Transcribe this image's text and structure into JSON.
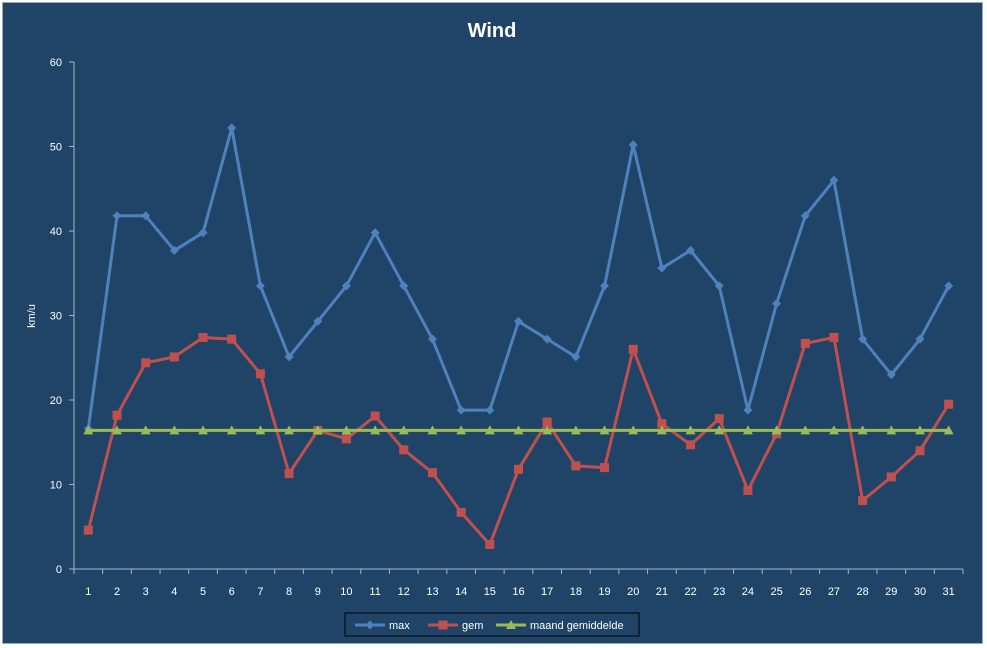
{
  "chart_data": {
    "type": "line",
    "title": "Wind",
    "xlabel": "",
    "ylabel": "km/u",
    "ylim": [
      0,
      60
    ],
    "yticks": [
      0,
      10,
      20,
      30,
      40,
      50,
      60
    ],
    "categories": [
      "1",
      "2",
      "3",
      "4",
      "5",
      "6",
      "7",
      "8",
      "9",
      "10",
      "11",
      "12",
      "13",
      "14",
      "15",
      "16",
      "17",
      "18",
      "19",
      "20",
      "21",
      "22",
      "23",
      "24",
      "25",
      "26",
      "27",
      "28",
      "29",
      "30",
      "31"
    ],
    "grid": false,
    "legend_position": "bottom",
    "series": [
      {
        "name": "max",
        "color": "#4f81bd",
        "marker": "diamond",
        "values": [
          16.6,
          41.8,
          41.8,
          37.7,
          39.8,
          52.2,
          33.5,
          25.1,
          29.3,
          33.5,
          39.8,
          33.5,
          27.2,
          18.8,
          18.8,
          29.3,
          27.2,
          25.1,
          33.5,
          50.2,
          35.6,
          37.7,
          33.5,
          18.8,
          31.4,
          41.8,
          46.0,
          27.2,
          23.0,
          27.2,
          33.5
        ]
      },
      {
        "name": "gem",
        "color": "#c0504d",
        "marker": "square",
        "values": [
          4.6,
          18.2,
          24.4,
          25.1,
          27.4,
          27.2,
          23.1,
          11.3,
          16.4,
          15.4,
          18.1,
          14.1,
          11.4,
          6.7,
          2.9,
          11.8,
          17.4,
          12.2,
          12.0,
          26.0,
          17.2,
          14.7,
          17.8,
          9.3,
          16.0,
          26.7,
          27.4,
          8.1,
          10.9,
          14.0,
          19.5
        ]
      },
      {
        "name": "maand gemiddelde",
        "color": "#9bbb59",
        "marker": "triangle",
        "values": [
          16.4,
          16.4,
          16.4,
          16.4,
          16.4,
          16.4,
          16.4,
          16.4,
          16.4,
          16.4,
          16.4,
          16.4,
          16.4,
          16.4,
          16.4,
          16.4,
          16.4,
          16.4,
          16.4,
          16.4,
          16.4,
          16.4,
          16.4,
          16.4,
          16.4,
          16.4,
          16.4,
          16.4,
          16.4,
          16.4,
          16.4
        ]
      }
    ]
  }
}
